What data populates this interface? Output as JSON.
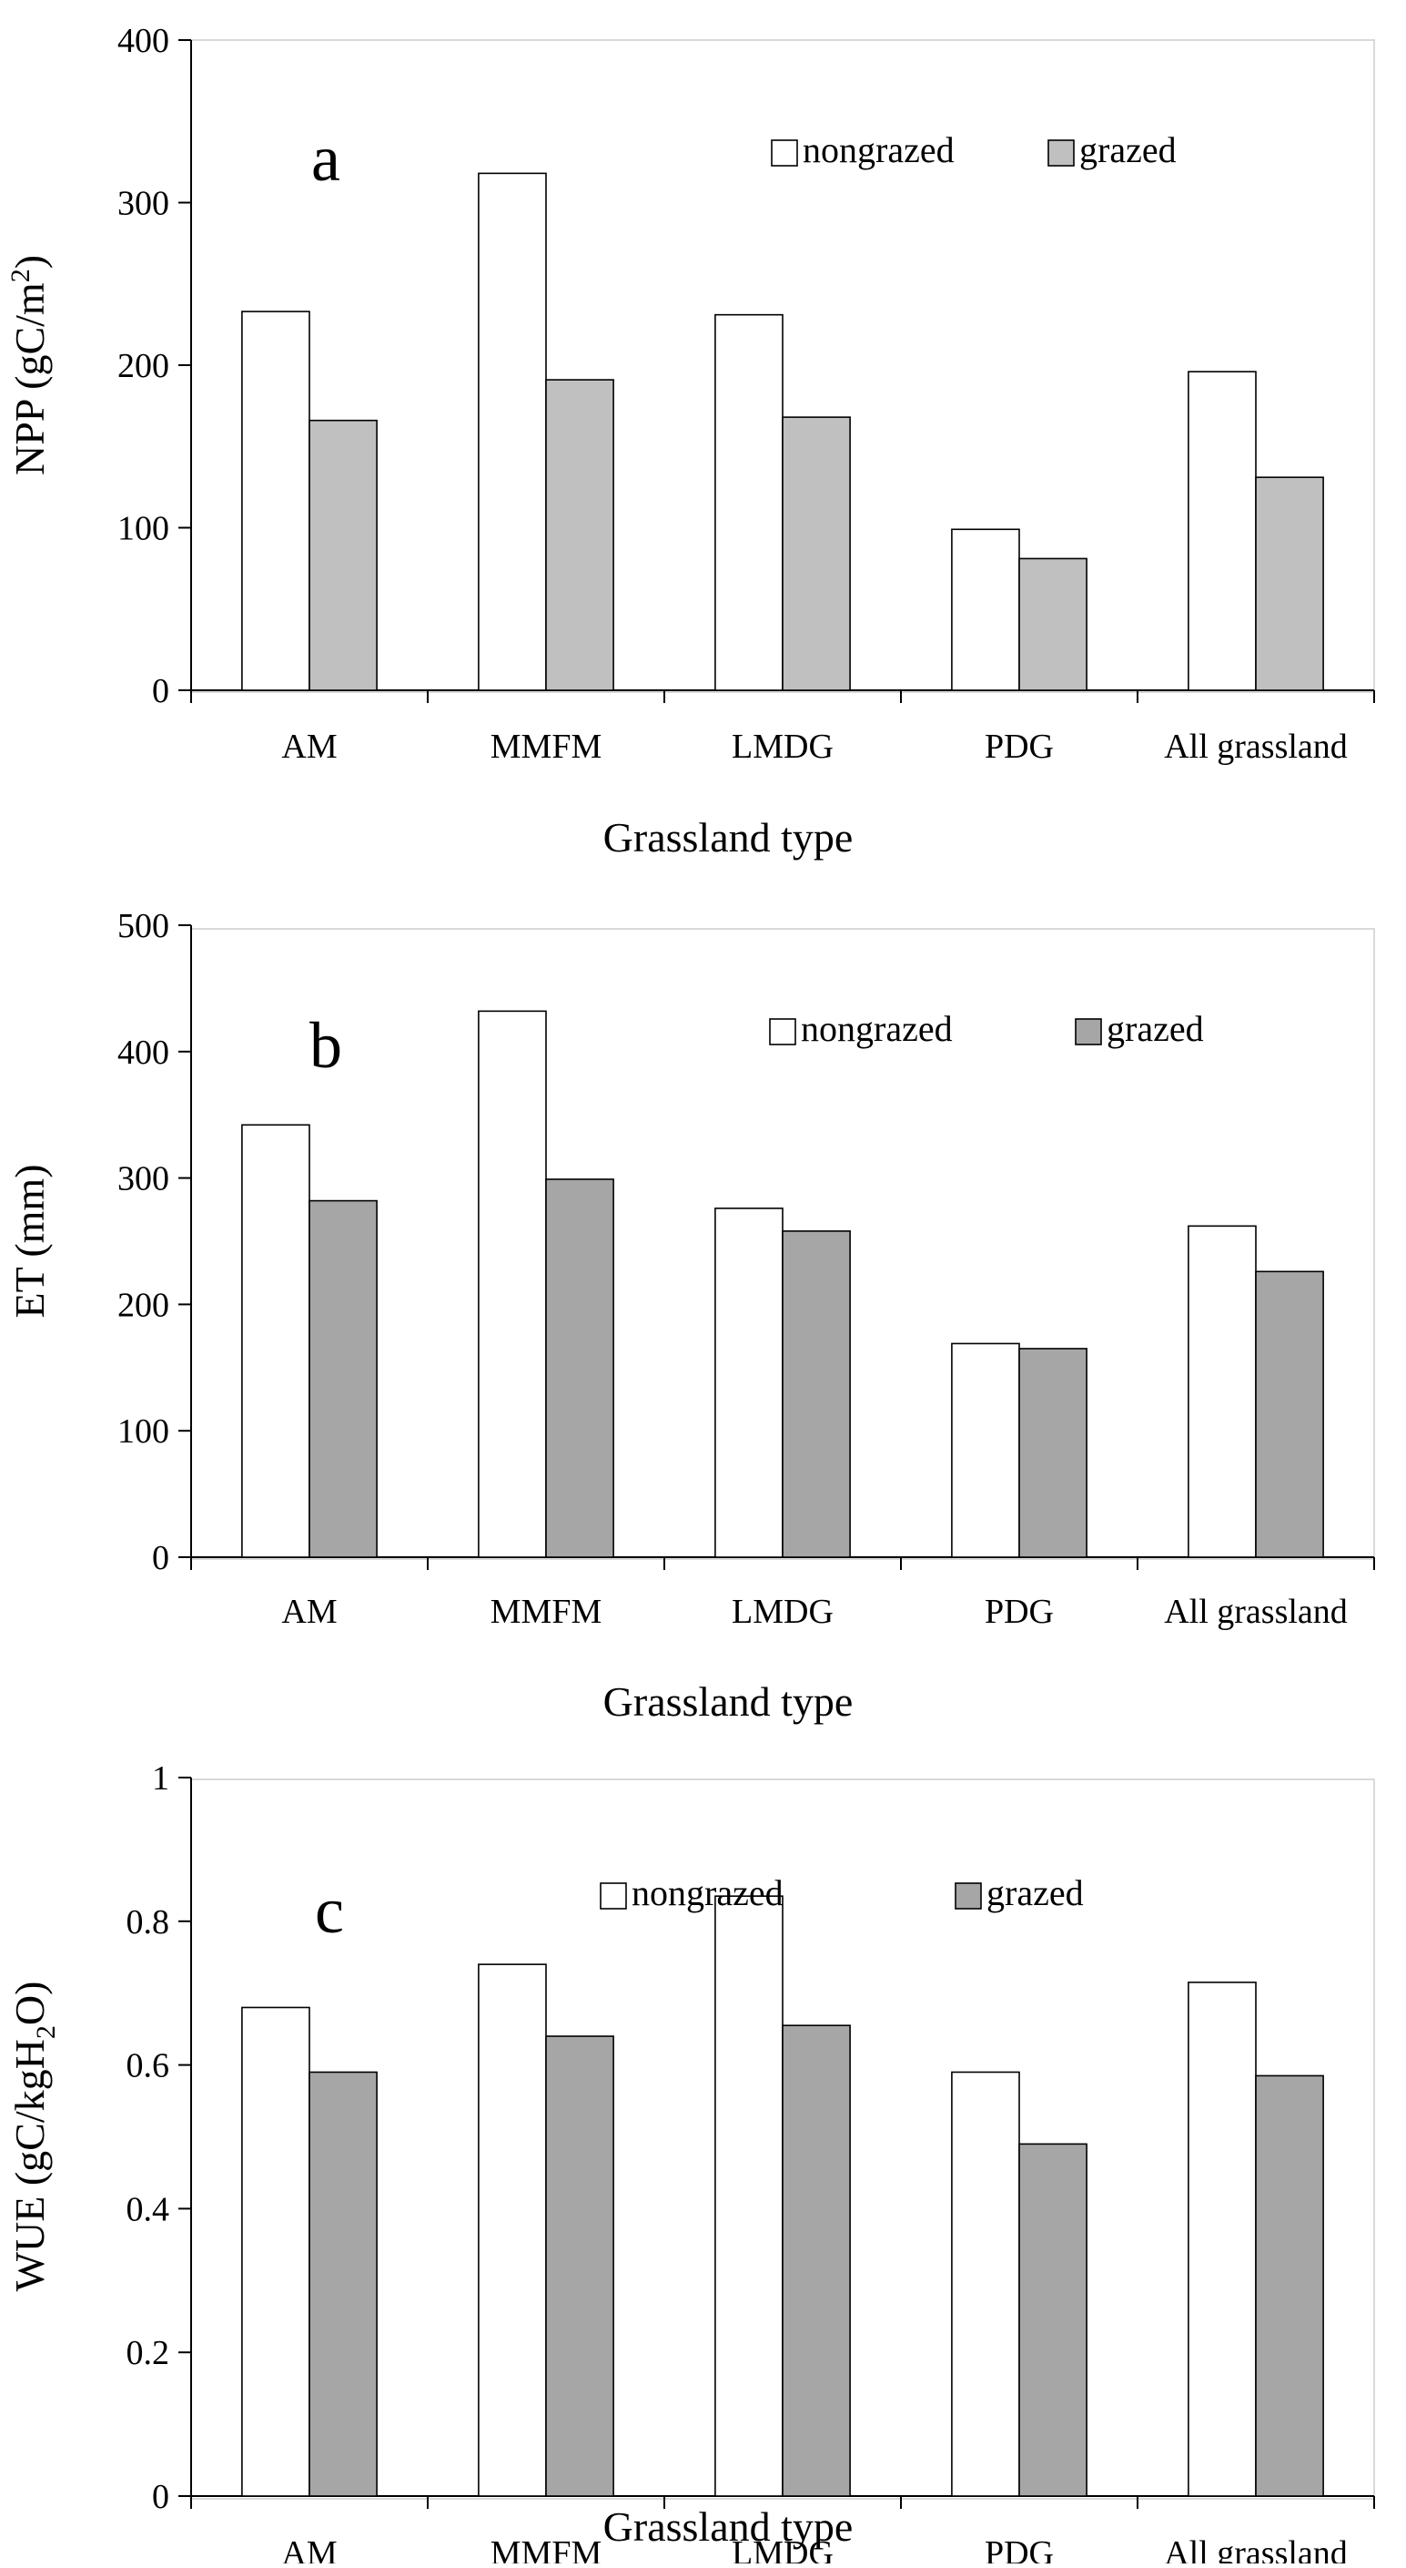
{
  "colors": {
    "nongrazed": "#ffffff",
    "grazed_a": "#c0c0c0",
    "grazed_b": "#a6a6a6",
    "grazed_c": "#a6a6a6",
    "axis": "#000000",
    "frame": "#d9d9d9",
    "bar_outline": "#000000"
  },
  "chart_data": [
    {
      "type": "bar",
      "panel_label": "a",
      "title": "",
      "xlabel": "Grassland type",
      "ylabel_main": "NPP (gC/m",
      "ylabel_sup": "2",
      "ylabel_end": ")",
      "ylim": [
        0,
        400
      ],
      "yticks": [
        0,
        100,
        200,
        300,
        400
      ],
      "ytick_labels": [
        "0",
        "100",
        "200",
        "300",
        "400"
      ],
      "categories": [
        "AM",
        "MMFM",
        "LMDG",
        "PDG",
        "All grassland"
      ],
      "series": [
        {
          "name": "nongrazed",
          "values": [
            233,
            318,
            231,
            99,
            196
          ]
        },
        {
          "name": "grazed",
          "values": [
            166,
            191,
            168,
            81,
            131
          ]
        }
      ],
      "legend_position": "top-right",
      "grid": false
    },
    {
      "type": "bar",
      "panel_label": "b",
      "title": "",
      "xlabel": "Grassland type",
      "ylabel_main": "ET (mm)",
      "ylabel_sup": "",
      "ylabel_end": "",
      "ylim": [
        0,
        500
      ],
      "yticks": [
        0,
        100,
        200,
        300,
        400,
        500
      ],
      "ytick_labels": [
        "0",
        "100",
        "200",
        "300",
        "400",
        "500"
      ],
      "categories": [
        "AM",
        "MMFM",
        "LMDG",
        "PDG",
        "All grassland"
      ],
      "series": [
        {
          "name": "nongrazed",
          "values": [
            342,
            432,
            276,
            169,
            262
          ]
        },
        {
          "name": "grazed",
          "values": [
            282,
            299,
            258,
            165,
            226
          ]
        }
      ],
      "legend_position": "top-right",
      "grid": false
    },
    {
      "type": "bar",
      "panel_label": "c",
      "title": "",
      "xlabel": "Grassland type",
      "ylabel_main": "WUE (gC/kgH",
      "ylabel_sub": "2",
      "ylabel_end": "O)",
      "ylim": [
        0,
        1
      ],
      "yticks": [
        0,
        0.2,
        0.4,
        0.6,
        0.8,
        1
      ],
      "ytick_labels": [
        "0",
        "0.2",
        "0.4",
        "0.6",
        "0.8",
        "1"
      ],
      "categories": [
        "AM",
        "MMFM",
        "LMDG",
        "PDG",
        "All grassland"
      ],
      "series": [
        {
          "name": "nongrazed",
          "values": [
            0.68,
            0.74,
            0.835,
            0.59,
            0.715
          ]
        },
        {
          "name": "grazed",
          "values": [
            0.59,
            0.64,
            0.655,
            0.49,
            0.585
          ]
        }
      ],
      "legend_position": "top-center",
      "grid": false
    }
  ]
}
